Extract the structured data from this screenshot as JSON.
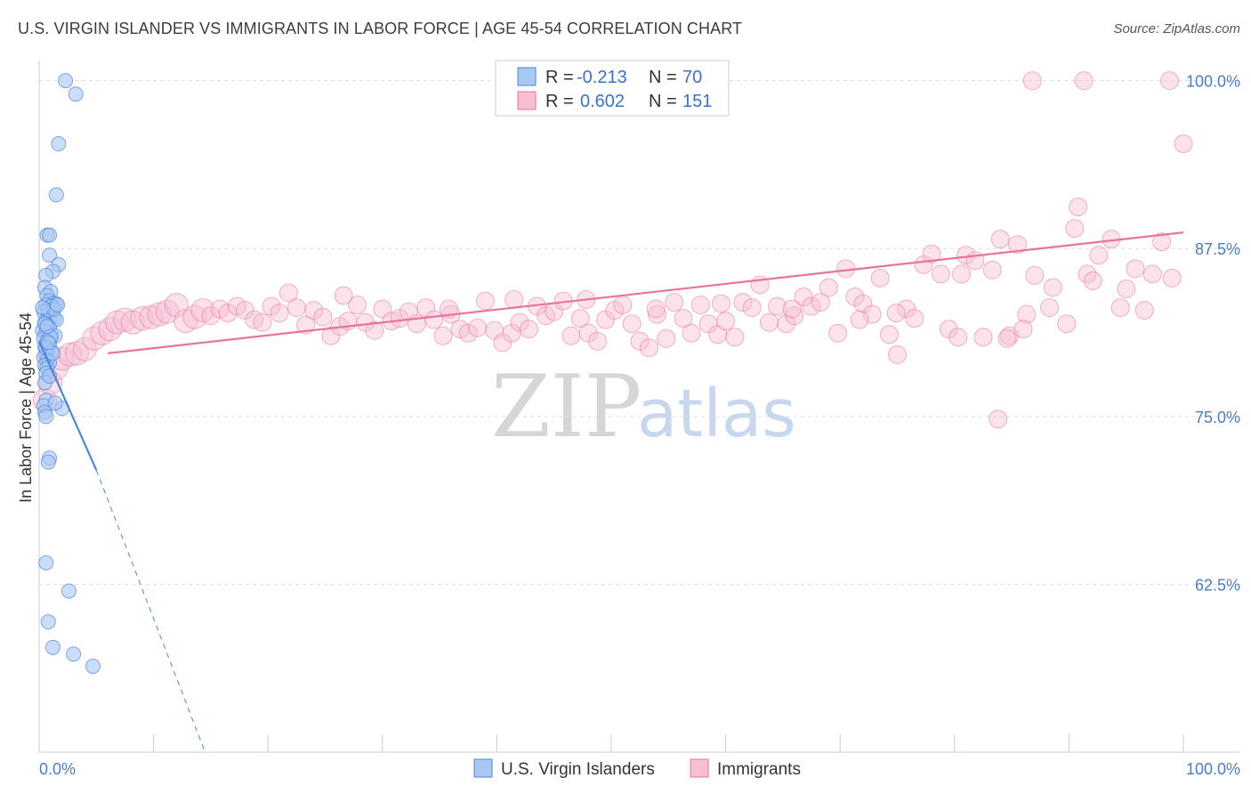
{
  "title": "U.S. VIRGIN ISLANDER VS IMMIGRANTS IN LABOR FORCE | AGE 45-54 CORRELATION CHART",
  "source": "Source: ZipAtlas.com",
  "watermark": {
    "zip": "ZIP",
    "atlas": "atlas"
  },
  "colors": {
    "blue": "#4a86e0",
    "blue_fill": "#a9c7f3",
    "pink": "#e8739c",
    "pink_fill": "#f6bfd3",
    "axis_label": "#4a7cc7",
    "grid": "#dddddd"
  },
  "legend": {
    "rows": [
      {
        "r_label": "R =",
        "r_value": "-0.213",
        "n_label": "N =",
        "n_value": "70"
      },
      {
        "r_label": "R =",
        "r_value": "0.602",
        "n_label": "N =",
        "n_value": "151"
      }
    ]
  },
  "chart_data": {
    "type": "scatter",
    "title": "U.S. VIRGIN ISLANDER VS IMMIGRANTS IN LABOR FORCE | AGE 45-54 CORRELATION CHART",
    "xlabel": "",
    "ylabel": "In Labor Force | Age 45-54",
    "xlim": [
      0,
      100
    ],
    "ylim": [
      50,
      101.5
    ],
    "x_tick_labels": [
      "0.0%",
      "100.0%"
    ],
    "y_ticks": [
      62.5,
      75.0,
      87.5,
      100.0
    ],
    "y_tick_labels": [
      "62.5%",
      "75.0%",
      "87.5%",
      "100.0%"
    ],
    "grid": true,
    "legend_position": "top-center",
    "series": [
      {
        "name": "U.S. Virgin Islanders",
        "color": "#4a86e0",
        "r": -0.213,
        "n": 70,
        "trend": {
          "x0": 0,
          "y0": 80.6,
          "x1": 5,
          "y1": 71.0,
          "dashed_to": {
            "x": 14.5,
            "y": 50
          }
        },
        "points": [
          [
            2.3,
            100.0
          ],
          [
            3.2,
            99.0
          ],
          [
            1.7,
            95.3
          ],
          [
            1.5,
            91.5
          ],
          [
            0.7,
            88.5
          ],
          [
            0.9,
            88.5
          ],
          [
            0.9,
            87.0
          ],
          [
            1.7,
            86.3
          ],
          [
            1.2,
            85.8
          ],
          [
            0.6,
            85.5
          ],
          [
            0.5,
            84.6
          ],
          [
            1.0,
            84.3
          ],
          [
            0.7,
            84.0
          ],
          [
            0.9,
            83.6
          ],
          [
            1.2,
            83.4
          ],
          [
            1.5,
            83.4
          ],
          [
            0.6,
            83.3
          ],
          [
            1.1,
            83.2
          ],
          [
            0.4,
            82.8
          ],
          [
            0.8,
            82.6
          ],
          [
            1.0,
            82.4
          ],
          [
            1.3,
            82.3
          ],
          [
            1.5,
            82.2
          ],
          [
            0.5,
            82.0
          ],
          [
            0.7,
            81.8
          ],
          [
            0.9,
            81.6
          ],
          [
            0.3,
            81.4
          ],
          [
            0.6,
            81.3
          ],
          [
            0.8,
            81.0
          ],
          [
            1.1,
            81.0
          ],
          [
            1.4,
            81.0
          ],
          [
            0.4,
            80.8
          ],
          [
            0.7,
            80.6
          ],
          [
            0.9,
            80.4
          ],
          [
            0.5,
            80.2
          ],
          [
            0.8,
            80.0
          ],
          [
            1.1,
            79.8
          ],
          [
            0.6,
            79.6
          ],
          [
            0.4,
            79.4
          ],
          [
            0.7,
            79.2
          ],
          [
            0.9,
            79.0
          ],
          [
            0.5,
            78.8
          ],
          [
            0.7,
            78.6
          ],
          [
            0.6,
            78.2
          ],
          [
            0.5,
            77.5
          ],
          [
            0.6,
            76.2
          ],
          [
            0.4,
            75.8
          ],
          [
            2.0,
            75.6
          ],
          [
            0.5,
            75.3
          ],
          [
            0.6,
            75.0
          ],
          [
            0.9,
            71.9
          ],
          [
            0.8,
            71.6
          ],
          [
            0.6,
            64.1
          ],
          [
            2.6,
            62.0
          ],
          [
            0.8,
            59.7
          ],
          [
            1.2,
            57.8
          ],
          [
            3.0,
            57.3
          ],
          [
            4.7,
            56.4
          ],
          [
            0.8,
            82.9
          ],
          [
            1.3,
            83.0
          ],
          [
            0.5,
            81.9
          ],
          [
            1.0,
            80.9
          ],
          [
            0.6,
            80.1
          ],
          [
            1.2,
            79.7
          ],
          [
            0.9,
            78.0
          ],
          [
            1.4,
            76.0
          ],
          [
            0.7,
            81.7
          ],
          [
            0.3,
            83.1
          ],
          [
            1.6,
            83.3
          ],
          [
            0.8,
            80.5
          ]
        ]
      },
      {
        "name": "Immigrants",
        "color": "#e8739c",
        "r": 0.602,
        "n": 151,
        "trend": {
          "x0": 6.0,
          "y0": 79.7,
          "x1": 100.0,
          "y1": 88.7
        },
        "points": [
          [
            0.5,
            76.2
          ],
          [
            1.0,
            77.5
          ],
          [
            1.5,
            78.6
          ],
          [
            2.0,
            79.3
          ],
          [
            2.7,
            79.6
          ],
          [
            3.3,
            79.7
          ],
          [
            4.0,
            80.0
          ],
          [
            4.8,
            80.8
          ],
          [
            5.5,
            81.2
          ],
          [
            6.2,
            81.5
          ],
          [
            6.8,
            82.0
          ],
          [
            7.5,
            82.2
          ],
          [
            8.2,
            82.0
          ],
          [
            9.0,
            82.3
          ],
          [
            9.8,
            82.4
          ],
          [
            10.5,
            82.6
          ],
          [
            11.2,
            82.8
          ],
          [
            12.0,
            83.3
          ],
          [
            12.8,
            82.1
          ],
          [
            13.6,
            82.4
          ],
          [
            14.3,
            82.9
          ],
          [
            15.0,
            82.5
          ],
          [
            15.8,
            83.0
          ],
          [
            16.5,
            82.7
          ],
          [
            17.3,
            83.2
          ],
          [
            18.0,
            82.9
          ],
          [
            18.8,
            82.2
          ],
          [
            19.5,
            82.0
          ],
          [
            20.3,
            83.2
          ],
          [
            21.0,
            82.7
          ],
          [
            21.8,
            84.2
          ],
          [
            22.5,
            83.1
          ],
          [
            23.3,
            81.8
          ],
          [
            24.0,
            82.9
          ],
          [
            24.8,
            82.4
          ],
          [
            25.5,
            81.0
          ],
          [
            26.3,
            81.7
          ],
          [
            27.0,
            82.1
          ],
          [
            27.8,
            83.3
          ],
          [
            28.5,
            82.0
          ],
          [
            29.3,
            81.4
          ],
          [
            30.0,
            83.0
          ],
          [
            30.8,
            82.1
          ],
          [
            31.5,
            82.3
          ],
          [
            32.3,
            82.8
          ],
          [
            33.0,
            81.9
          ],
          [
            33.8,
            83.1
          ],
          [
            34.5,
            82.2
          ],
          [
            35.3,
            81.0
          ],
          [
            36.0,
            82.6
          ],
          [
            36.8,
            81.5
          ],
          [
            37.5,
            81.2
          ],
          [
            38.3,
            81.6
          ],
          [
            39.0,
            83.6
          ],
          [
            39.8,
            81.4
          ],
          [
            40.5,
            80.5
          ],
          [
            41.3,
            81.2
          ],
          [
            42.0,
            82.0
          ],
          [
            42.8,
            81.5
          ],
          [
            43.5,
            83.2
          ],
          [
            44.3,
            82.5
          ],
          [
            45.0,
            82.8
          ],
          [
            45.8,
            83.6
          ],
          [
            46.5,
            81.0
          ],
          [
            47.3,
            82.3
          ],
          [
            48.0,
            81.2
          ],
          [
            48.8,
            80.6
          ],
          [
            49.5,
            82.2
          ],
          [
            50.3,
            82.9
          ],
          [
            51.0,
            83.3
          ],
          [
            51.8,
            81.9
          ],
          [
            52.5,
            80.6
          ],
          [
            53.3,
            80.1
          ],
          [
            54.0,
            82.6
          ],
          [
            54.8,
            80.8
          ],
          [
            55.5,
            83.5
          ],
          [
            56.3,
            82.3
          ],
          [
            57.0,
            81.2
          ],
          [
            57.8,
            83.3
          ],
          [
            58.5,
            81.9
          ],
          [
            59.3,
            81.1
          ],
          [
            60.0,
            82.1
          ],
          [
            60.8,
            80.9
          ],
          [
            61.5,
            83.5
          ],
          [
            62.3,
            83.1
          ],
          [
            63.0,
            84.8
          ],
          [
            63.8,
            82.0
          ],
          [
            64.5,
            83.2
          ],
          [
            65.3,
            81.9
          ],
          [
            66.0,
            82.5
          ],
          [
            66.8,
            83.9
          ],
          [
            67.5,
            83.2
          ],
          [
            68.3,
            83.5
          ],
          [
            69.0,
            84.6
          ],
          [
            69.8,
            81.2
          ],
          [
            70.5,
            86.0
          ],
          [
            71.3,
            83.9
          ],
          [
            72.0,
            83.4
          ],
          [
            72.8,
            82.6
          ],
          [
            73.5,
            85.3
          ],
          [
            74.3,
            81.1
          ],
          [
            75.0,
            79.6
          ],
          [
            75.8,
            83.0
          ],
          [
            76.5,
            82.3
          ],
          [
            77.3,
            86.3
          ],
          [
            78.0,
            87.1
          ],
          [
            78.8,
            85.6
          ],
          [
            79.5,
            81.5
          ],
          [
            80.3,
            80.9
          ],
          [
            81.0,
            87.0
          ],
          [
            81.8,
            86.6
          ],
          [
            82.5,
            80.9
          ],
          [
            83.3,
            85.9
          ],
          [
            84.0,
            88.2
          ],
          [
            84.8,
            81.0
          ],
          [
            85.5,
            87.8
          ],
          [
            86.3,
            82.6
          ],
          [
            87.0,
            85.5
          ],
          [
            88.3,
            83.1
          ],
          [
            89.8,
            81.9
          ],
          [
            90.5,
            89.0
          ],
          [
            90.8,
            90.6
          ],
          [
            91.6,
            85.6
          ],
          [
            92.1,
            85.1
          ],
          [
            92.6,
            87.0
          ],
          [
            93.7,
            88.2
          ],
          [
            94.5,
            83.1
          ],
          [
            95.0,
            84.5
          ],
          [
            95.8,
            86.0
          ],
          [
            96.6,
            82.9
          ],
          [
            97.3,
            85.6
          ],
          [
            98.1,
            88.0
          ],
          [
            99.0,
            85.3
          ],
          [
            83.8,
            74.8
          ],
          [
            84.6,
            80.8
          ],
          [
            86.8,
            100.0
          ],
          [
            91.3,
            100.0
          ],
          [
            98.8,
            100.0
          ],
          [
            100.0,
            95.3
          ],
          [
            86.0,
            81.5
          ],
          [
            26.6,
            84.0
          ],
          [
            35.8,
            83.0
          ],
          [
            41.5,
            83.7
          ],
          [
            47.8,
            83.7
          ],
          [
            53.9,
            83.0
          ],
          [
            59.6,
            83.4
          ],
          [
            65.8,
            83.0
          ],
          [
            71.7,
            82.2
          ],
          [
            74.9,
            82.7
          ],
          [
            80.6,
            85.6
          ],
          [
            88.6,
            84.6
          ]
        ]
      }
    ]
  },
  "bottom_legend": {
    "items": [
      {
        "label": "U.S. Virgin Islanders"
      },
      {
        "label": "Immigrants"
      }
    ]
  }
}
